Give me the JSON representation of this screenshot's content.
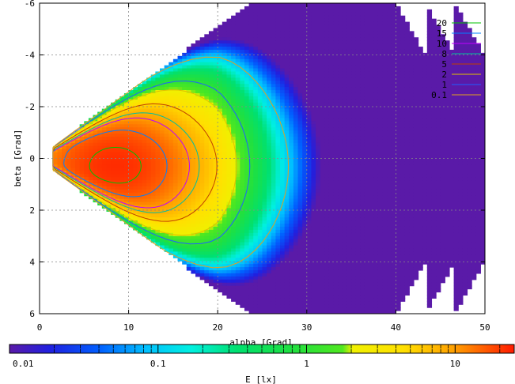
{
  "chart_data": {
    "type": "heatmap",
    "xlabel": "alpha [Grad]",
    "ylabel": "beta [Grad]",
    "xlim": [
      0,
      50
    ],
    "ylim": [
      6,
      -6
    ],
    "x_ticks": [
      "0",
      "10",
      "20",
      "30",
      "40",
      "50"
    ],
    "y_ticks": [
      "-6",
      "-4",
      "-2",
      "0",
      "2",
      "4",
      "6"
    ],
    "grid": true,
    "legend_position": "top-right",
    "contour_series": [
      {
        "name": "20",
        "color": "#00c000"
      },
      {
        "name": "15",
        "color": "#0080ff"
      },
      {
        "name": "10",
        "color": "#c000ff"
      },
      {
        "name": "8",
        "color": "#00c0a0"
      },
      {
        "name": "5",
        "color": "#c04000"
      },
      {
        "name": "2",
        "color": "#e0c000"
      },
      {
        "name": "1",
        "color": "#2060ff"
      },
      {
        "name": "0.1",
        "color": "#e0a020"
      }
    ],
    "colorbar": {
      "label": "E [lx]",
      "scale": "log",
      "range": [
        0.01,
        25
      ],
      "tick_labels": [
        "0.01",
        "0.1",
        "1",
        "10"
      ],
      "tick_values": [
        0.01,
        0.1,
        1,
        10
      ]
    },
    "field": {
      "peak_at": {
        "x": 8.5,
        "y": 0.3
      },
      "peak_value": 22
    }
  }
}
